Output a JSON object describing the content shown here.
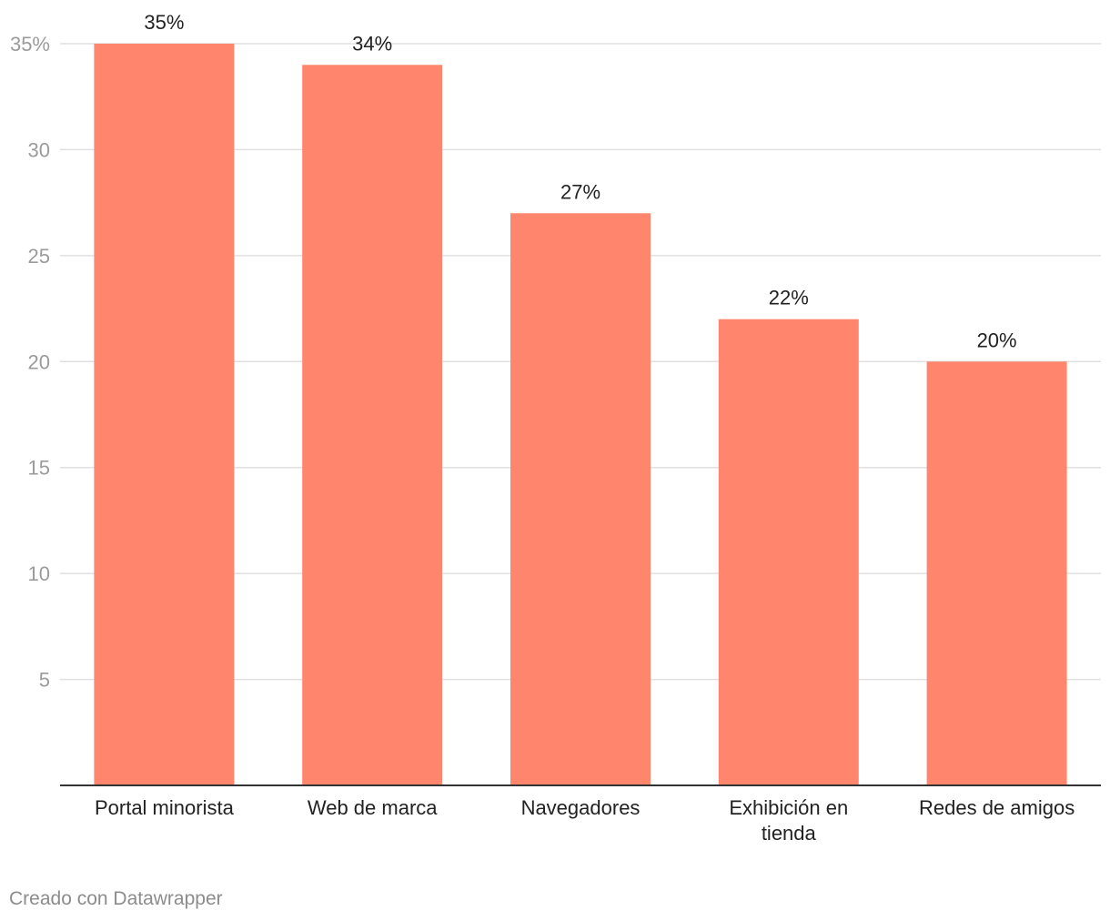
{
  "chart_data": {
    "type": "bar",
    "title": "",
    "xlabel": "",
    "ylabel": "",
    "categories": [
      "Portal minorista",
      "Web de marca",
      "Navegadores",
      "Exhibición en tienda",
      "Redes de amigos"
    ],
    "category_lines": [
      [
        "Portal minorista"
      ],
      [
        "Web de marca"
      ],
      [
        "Navegadores"
      ],
      [
        "Exhibición en",
        "tienda"
      ],
      [
        "Redes de amigos"
      ]
    ],
    "values": [
      35,
      34,
      27,
      22,
      20
    ],
    "value_labels": [
      "35%",
      "34%",
      "27%",
      "22%",
      "20%"
    ],
    "ylim": [
      0,
      35
    ],
    "yticks": [
      5,
      10,
      15,
      20,
      25,
      30,
      35
    ],
    "ytick_labels": [
      "5",
      "10",
      "15",
      "20",
      "25",
      "30",
      "35%"
    ],
    "grid": true,
    "legend": "none",
    "bar_color": "#ff856c",
    "grid_color": "#e0e0e0",
    "axis_color": "#333333",
    "tick_label_color": "#9b9b9b",
    "text_color": "#222222"
  },
  "footer": {
    "credit": "Creado con Datawrapper"
  }
}
